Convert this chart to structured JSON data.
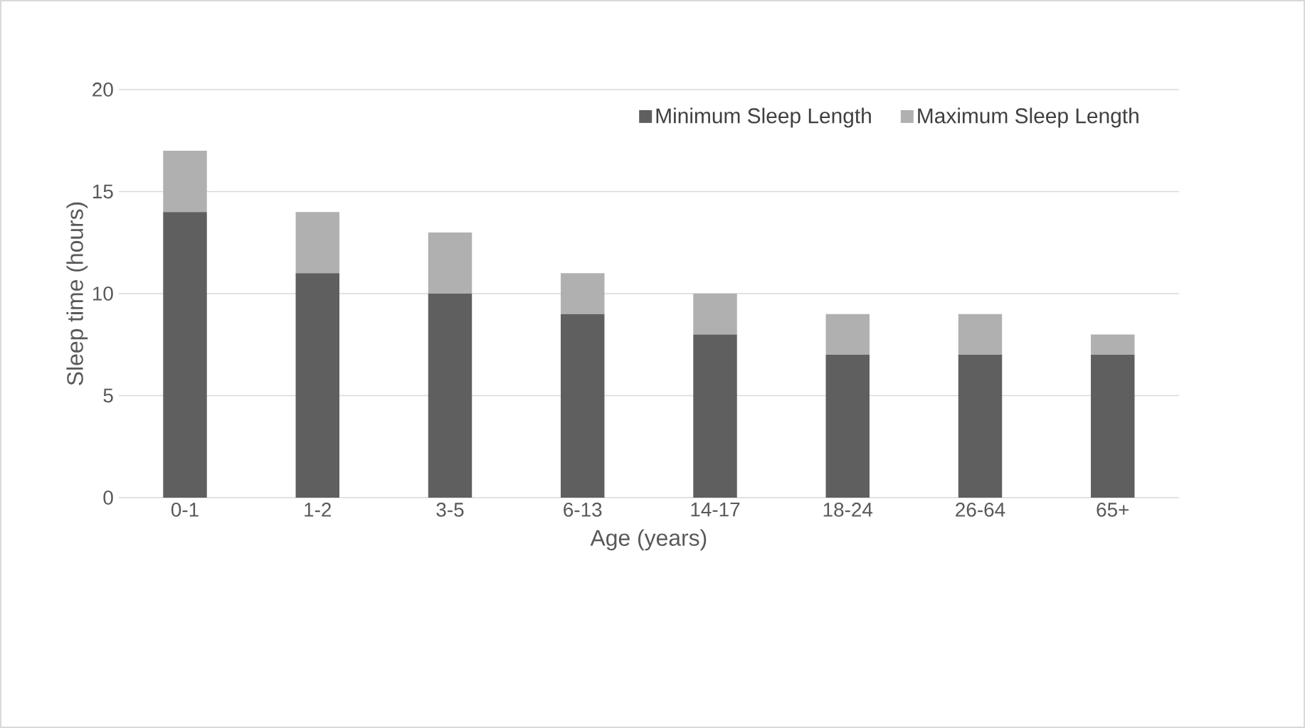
{
  "chart_data": {
    "type": "bar",
    "stacked": true,
    "xlabel": "Age (years)",
    "ylabel": "Sleep time (hours)",
    "categories": [
      "0-1",
      "1-2",
      "3-5",
      "6-13",
      "14-17",
      "18-24",
      "26-64",
      "65+"
    ],
    "series": [
      {
        "name": "Minimum Sleep Length",
        "color": "#5f5f5f",
        "values": [
          14,
          11,
          10,
          9,
          8,
          7,
          7,
          7
        ]
      },
      {
        "name": "Maximum Sleep Length",
        "color": "#b0b0b0",
        "values": [
          3,
          3,
          3,
          2,
          2,
          2,
          2,
          1
        ]
      }
    ],
    "ylim": [
      0,
      20
    ],
    "yticks": [
      0,
      5,
      10,
      15,
      20
    ],
    "grid": "y",
    "legend": "top right"
  }
}
